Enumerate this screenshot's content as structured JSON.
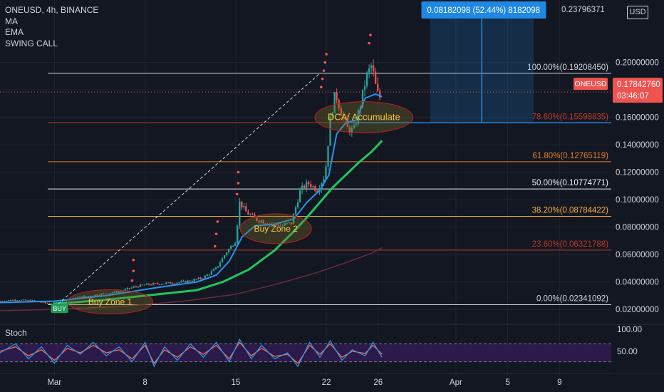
{
  "header": {
    "symbol_line": "ONEUSD, 4h, BINANCE",
    "indicators": [
      "MA",
      "EMA",
      "SWING CALL"
    ]
  },
  "currency_badge": "USD",
  "measure_box_label": "0.08182098 (52.44%) 8182098",
  "annotations": {
    "buy_zone_1": "Buy Zone 1",
    "buy_zone_2": "Buy Zone 2",
    "dca": "DCA/ Accumulate",
    "buy_tag": "BUY"
  },
  "last_price": {
    "symbol": "ONEUSD",
    "price": "0.17842760",
    "countdown": "03:46:07",
    "value": 0.1784276
  },
  "stoch": {
    "label": "Stoch",
    "ticks": [
      "100.00",
      "50.00"
    ],
    "upper": 80,
    "lower": 20
  },
  "colors": {
    "background": "#131722",
    "candle_up": "#26a69a",
    "candle_down": "#ef5350",
    "ema": "#2196f3",
    "ma_green": "#22c55e",
    "ma_slow": "#6b2a3a",
    "annotation_ellipse": "#b91c1c",
    "measure_box": "#1e88e5",
    "stoch_k": "#2196f3",
    "stoch_d": "#ff6b35",
    "stoch_band": "#2b1a4a"
  },
  "chart_data": {
    "type": "candlestick",
    "title": "ONEUSD, 4h, BINANCE",
    "x_ticks": [
      {
        "label": "Mar",
        "day": 0
      },
      {
        "label": "8",
        "day": 7
      },
      {
        "label": "15",
        "day": 14
      },
      {
        "label": "22",
        "day": 21
      },
      {
        "label": "26",
        "day": 25
      },
      {
        "label": "Apr",
        "day": 31
      },
      {
        "label": "5",
        "day": 35
      },
      {
        "label": "9",
        "day": 39
      }
    ],
    "x_range_days": [
      -4.2,
      43.0
    ],
    "y_ticks": [
      0.2,
      0.18,
      0.16,
      0.14,
      0.12,
      0.1,
      0.08,
      0.06,
      0.04,
      0.02
    ],
    "y_tick_labels": [
      "0.20000000",
      "0.18000000",
      "0.16000000",
      "0.14000000",
      "0.12000000",
      "0.10000000",
      "0.08000000",
      "0.06000000",
      "0.04000000",
      "0.02000000"
    ],
    "top_label": "0.23796371",
    "ylim": [
      0.0107,
      0.2377
    ],
    "fib_levels": [
      {
        "label": "100.00%(0.19208450)",
        "value": 0.1920845,
        "color": "#d1d4dc"
      },
      {
        "label": "78.60%(0.15598835)",
        "value": 0.15598835,
        "color": "#c0392b"
      },
      {
        "label": "61.80%(0.12765119)",
        "value": 0.12765119,
        "color": "#e67e22"
      },
      {
        "label": "50.00%(0.10774771)",
        "value": 0.10774771,
        "color": "#ecf0f1"
      },
      {
        "label": "38.20%(0.08784422)",
        "value": 0.08784422,
        "color": "#f5b041"
      },
      {
        "label": "23.60%(0.06321788)",
        "value": 0.06321788,
        "color": "#c0392b"
      },
      {
        "label": "0.00%(0.02341092)",
        "value": 0.02341092,
        "color": "#d1d4dc"
      }
    ],
    "price_path": [
      [
        -4.2,
        0.026
      ],
      [
        -3,
        0.027
      ],
      [
        -1.5,
        0.026
      ],
      [
        -0.3,
        0.024
      ],
      [
        0.5,
        0.026
      ],
      [
        2,
        0.029
      ],
      [
        3.5,
        0.031
      ],
      [
        5,
        0.033
      ],
      [
        6,
        0.036
      ],
      [
        7,
        0.038
      ],
      [
        8.5,
        0.039
      ],
      [
        10,
        0.04
      ],
      [
        11.5,
        0.043
      ],
      [
        12.5,
        0.05
      ],
      [
        13.3,
        0.062
      ],
      [
        14,
        0.07
      ],
      [
        14.3,
        0.098
      ],
      [
        14.8,
        0.091
      ],
      [
        15.5,
        0.086
      ],
      [
        16.5,
        0.083
      ],
      [
        17.5,
        0.081
      ],
      [
        18.3,
        0.083
      ],
      [
        19,
        0.107
      ],
      [
        19.6,
        0.112
      ],
      [
        20.3,
        0.107
      ],
      [
        20.9,
        0.118
      ],
      [
        21.3,
        0.158
      ],
      [
        21.7,
        0.178
      ],
      [
        22.1,
        0.165
      ],
      [
        22.6,
        0.152
      ],
      [
        23.1,
        0.15
      ],
      [
        23.6,
        0.168
      ],
      [
        24.1,
        0.19
      ],
      [
        24.5,
        0.198
      ],
      [
        24.9,
        0.178
      ],
      [
        25.3,
        0.172
      ]
    ],
    "ema": [
      [
        -4.2,
        0.025
      ],
      [
        0,
        0.026
      ],
      [
        4,
        0.03
      ],
      [
        8,
        0.036
      ],
      [
        11,
        0.04
      ],
      [
        12.5,
        0.045
      ],
      [
        13.5,
        0.055
      ],
      [
        14.5,
        0.073
      ],
      [
        15.5,
        0.081
      ],
      [
        17,
        0.082
      ],
      [
        18.5,
        0.086
      ],
      [
        19.5,
        0.098
      ],
      [
        20.5,
        0.107
      ],
      [
        21.2,
        0.118
      ],
      [
        21.8,
        0.148
      ],
      [
        22.5,
        0.156
      ],
      [
        23.3,
        0.158
      ],
      [
        24,
        0.174
      ],
      [
        24.8,
        0.177
      ],
      [
        25.3,
        0.175
      ]
    ],
    "ma_green": [
      [
        0,
        0.024
      ],
      [
        4,
        0.027
      ],
      [
        8,
        0.031
      ],
      [
        11,
        0.034
      ],
      [
        13,
        0.04
      ],
      [
        15,
        0.049
      ],
      [
        17,
        0.063
      ],
      [
        18.5,
        0.077
      ],
      [
        19.5,
        0.087
      ],
      [
        20.5,
        0.098
      ],
      [
        21.5,
        0.109
      ],
      [
        22.5,
        0.118
      ],
      [
        23.5,
        0.127
      ],
      [
        24.5,
        0.135
      ],
      [
        25.3,
        0.143
      ]
    ],
    "ma_slow": [
      [
        -4.2,
        0.019
      ],
      [
        0,
        0.02
      ],
      [
        5,
        0.022
      ],
      [
        10,
        0.026
      ],
      [
        14,
        0.031
      ],
      [
        17,
        0.038
      ],
      [
        20,
        0.046
      ],
      [
        22.5,
        0.054
      ],
      [
        24.5,
        0.061
      ],
      [
        25.3,
        0.065
      ]
    ],
    "swing_dots": [
      [
        6.0,
        0.041
      ],
      [
        6.1,
        0.048
      ],
      [
        6.1,
        0.056
      ],
      [
        12.4,
        0.066
      ],
      [
        12.5,
        0.075
      ],
      [
        12.6,
        0.084
      ],
      [
        14.1,
        0.104
      ],
      [
        14.2,
        0.112
      ],
      [
        14.2,
        0.12
      ],
      [
        20.6,
        0.182
      ],
      [
        20.7,
        0.188
      ],
      [
        20.8,
        0.194
      ],
      [
        20.9,
        0.2
      ],
      [
        21.0,
        0.206
      ],
      [
        24.3,
        0.214
      ],
      [
        24.4,
        0.22
      ]
    ],
    "trend_line": [
      [
        0.3,
        0.024
      ],
      [
        20.5,
        0.192
      ]
    ],
    "measure_box": {
      "x_from": 29,
      "x_to": 37,
      "y_from": 0.156,
      "y_to": 0.2379
    },
    "stoch_k": [
      [
        -4.2,
        50
      ],
      [
        -3,
        80
      ],
      [
        -2,
        30
      ],
      [
        -1,
        70
      ],
      [
        0,
        15
      ],
      [
        1,
        75
      ],
      [
        2,
        45
      ],
      [
        3,
        85
      ],
      [
        4,
        40
      ],
      [
        5,
        70
      ],
      [
        6,
        20
      ],
      [
        7,
        85
      ],
      [
        7.7,
        5
      ],
      [
        8.5,
        70
      ],
      [
        9.5,
        25
      ],
      [
        10.5,
        80
      ],
      [
        11.5,
        35
      ],
      [
        12.5,
        85
      ],
      [
        13.5,
        20
      ],
      [
        14.3,
        95
      ],
      [
        15.2,
        30
      ],
      [
        16,
        75
      ],
      [
        17,
        30
      ],
      [
        18,
        50
      ],
      [
        18.8,
        5
      ],
      [
        19.7,
        85
      ],
      [
        20.5,
        35
      ],
      [
        21.3,
        90
      ],
      [
        22.2,
        25
      ],
      [
        23,
        60
      ],
      [
        24,
        40
      ],
      [
        24.6,
        85
      ],
      [
        25.3,
        35
      ]
    ],
    "stoch_d": [
      [
        -4.2,
        55
      ],
      [
        -3,
        70
      ],
      [
        -2,
        40
      ],
      [
        -1,
        60
      ],
      [
        0,
        25
      ],
      [
        1,
        65
      ],
      [
        2,
        50
      ],
      [
        3,
        75
      ],
      [
        4,
        50
      ],
      [
        5,
        60
      ],
      [
        6,
        30
      ],
      [
        7,
        75
      ],
      [
        7.7,
        15
      ],
      [
        8.5,
        60
      ],
      [
        9.5,
        35
      ],
      [
        10.5,
        70
      ],
      [
        11.5,
        45
      ],
      [
        12.5,
        75
      ],
      [
        13.5,
        30
      ],
      [
        14.3,
        85
      ],
      [
        15.2,
        40
      ],
      [
        16,
        65
      ],
      [
        17,
        38
      ],
      [
        18,
        45
      ],
      [
        18.8,
        15
      ],
      [
        19.7,
        75
      ],
      [
        20.5,
        45
      ],
      [
        21.3,
        80
      ],
      [
        22.2,
        35
      ],
      [
        23,
        55
      ],
      [
        24,
        48
      ],
      [
        24.6,
        75
      ],
      [
        25.3,
        45
      ]
    ]
  }
}
